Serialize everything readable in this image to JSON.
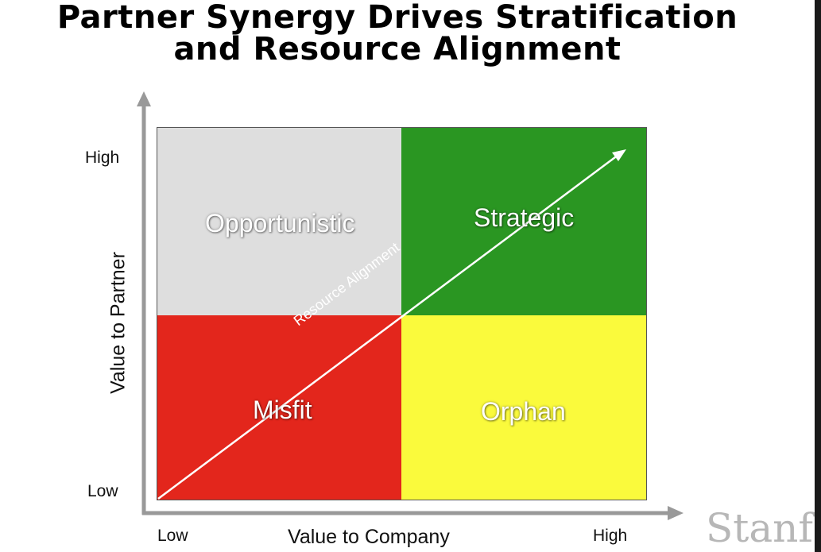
{
  "title": {
    "line1": "Partner Synergy Drives Stratification",
    "line2": "and Resource Alignment"
  },
  "axes": {
    "y_title": "Value to Partner",
    "x_title": "Value to Company",
    "y_high": "High",
    "y_low": "Low",
    "x_low": "Low",
    "x_high": "High"
  },
  "quadrants": {
    "top_left": {
      "label": "Opportunistic",
      "color": "#dedede"
    },
    "top_right": {
      "label": "Strategic",
      "color": "#2a9622"
    },
    "bottom_left": {
      "label": "Misfit",
      "color": "#e3261c"
    },
    "bottom_right": {
      "label": "Orphan",
      "color": "#fafa3c"
    }
  },
  "diagonal_label": "Resource Alignment",
  "watermark": "Stanf"
}
